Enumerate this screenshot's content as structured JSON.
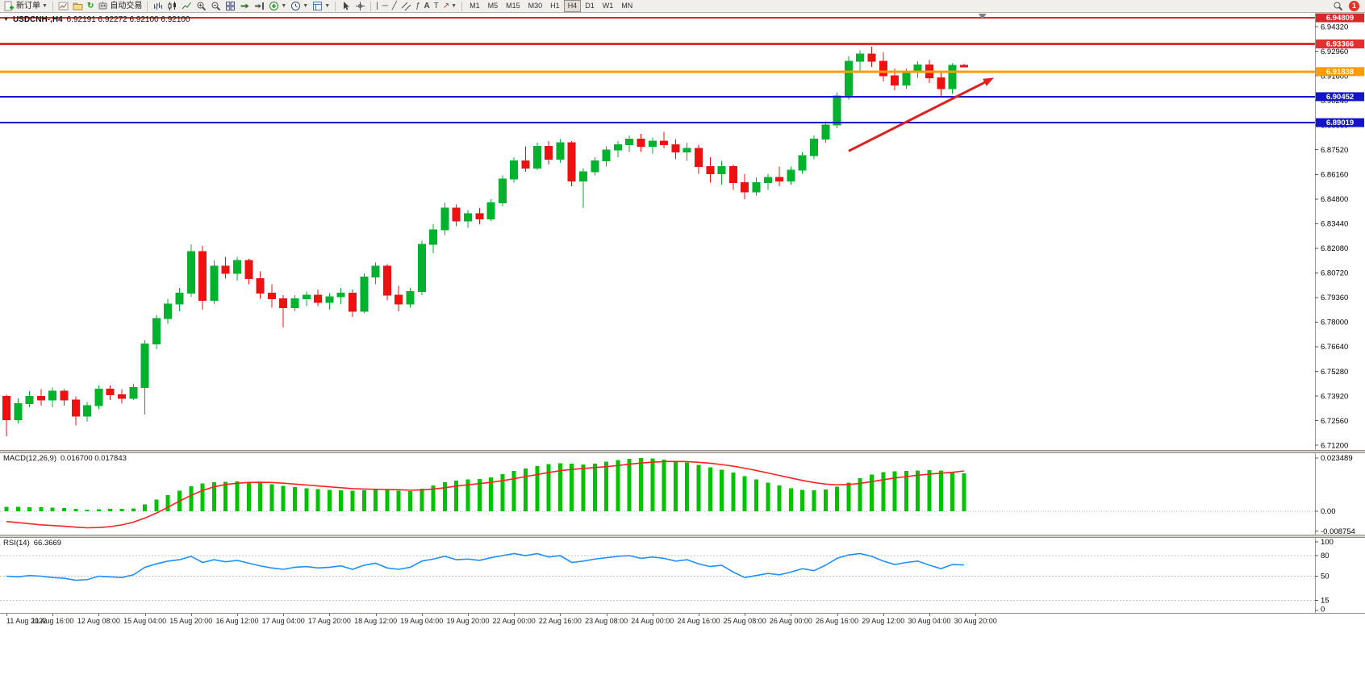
{
  "toolbar": {
    "new_order_label": "新订单",
    "autotrade_label": "自动交易",
    "timeframes": [
      "M1",
      "M5",
      "M15",
      "M30",
      "H1",
      "H4",
      "D1",
      "W1",
      "MN"
    ],
    "active_timeframe": "H4",
    "notification_count": "1"
  },
  "chart": {
    "symbol_period": "USDCNH-,H4",
    "ohlc_line": "6.92191 6.92272 6.92100 6.92100",
    "macd_label": "MACD(12,26,9)",
    "macd_values": "0.016700 0.017843",
    "rsi_label": "RSI(14)",
    "rsi_value": "66.3669"
  },
  "chart_data": {
    "type": "candlestick",
    "symbol": "USDCNH-",
    "timeframe": "H4",
    "ohlc_current": {
      "open": 6.92191,
      "high": 6.92272,
      "low": 6.921,
      "close": 6.921
    },
    "bull_color": "#00b22c",
    "bear_color": "#ee1111",
    "price_axis": {
      "min": 6.7094,
      "max": 6.9508,
      "tick_start": 6.9432,
      "tick_step": 0.0136,
      "tick_labels": [
        "6.94320",
        "6.92960",
        "6.91600",
        "6.90240",
        "6.88880",
        "6.87520",
        "6.86160",
        "6.84800",
        "6.83440",
        "6.82080",
        "6.80720",
        "6.79360",
        "6.78000",
        "6.76640",
        "6.75280",
        "6.73920",
        "6.72560",
        "6.71200"
      ]
    },
    "x_labels": [
      "11 Aug 2022",
      "11 Aug 16:00",
      "12 Aug 08:00",
      "15 Aug 04:00",
      "15 Aug 20:00",
      "16 Aug 12:00",
      "17 Aug 04:00",
      "17 Aug 20:00",
      "18 Aug 12:00",
      "19 Aug 04:00",
      "19 Aug 20:00",
      "22 Aug 00:00",
      "22 Aug 16:00",
      "23 Aug 08:00",
      "24 Aug 00:00",
      "24 Aug 16:00",
      "25 Aug 08:00",
      "26 Aug 00:00",
      "26 Aug 16:00",
      "29 Aug 12:00",
      "30 Aug 04:00",
      "30 Aug 20:00"
    ],
    "candles": [
      [
        6.739,
        6.74,
        6.717,
        6.726
      ],
      [
        6.726,
        6.738,
        6.724,
        6.735
      ],
      [
        6.735,
        6.742,
        6.733,
        6.739
      ],
      [
        6.739,
        6.743,
        6.734,
        6.737
      ],
      [
        6.737,
        6.744,
        6.733,
        6.742
      ],
      [
        6.742,
        6.743,
        6.734,
        6.737
      ],
      [
        6.737,
        6.739,
        6.723,
        6.728
      ],
      [
        6.728,
        6.736,
        6.725,
        6.734
      ],
      [
        6.734,
        6.745,
        6.732,
        6.743
      ],
      [
        6.743,
        6.745,
        6.737,
        6.74
      ],
      [
        6.74,
        6.743,
        6.735,
        6.738
      ],
      [
        6.738,
        6.746,
        6.737,
        6.744
      ],
      [
        6.744,
        6.77,
        6.729,
        6.768
      ],
      [
        6.768,
        6.784,
        6.765,
        6.782
      ],
      [
        6.782,
        6.793,
        6.779,
        6.79
      ],
      [
        6.79,
        6.799,
        6.786,
        6.796
      ],
      [
        6.796,
        6.823,
        6.794,
        6.819
      ],
      [
        6.819,
        6.822,
        6.787,
        6.792
      ],
      [
        6.792,
        6.814,
        6.79,
        6.811
      ],
      [
        6.811,
        6.816,
        6.804,
        6.807
      ],
      [
        6.807,
        6.816,
        6.803,
        6.814
      ],
      [
        6.814,
        6.815,
        6.801,
        6.804
      ],
      [
        6.804,
        6.808,
        6.793,
        6.796
      ],
      [
        6.796,
        6.801,
        6.788,
        6.793
      ],
      [
        6.793,
        6.795,
        6.777,
        6.788
      ],
      [
        6.788,
        6.795,
        6.786,
        6.793
      ],
      [
        6.793,
        6.797,
        6.789,
        6.795
      ],
      [
        6.795,
        6.798,
        6.789,
        6.791
      ],
      [
        6.791,
        6.796,
        6.787,
        6.794
      ],
      [
        6.794,
        6.799,
        6.79,
        6.796
      ],
      [
        6.796,
        6.798,
        6.783,
        6.786
      ],
      [
        6.786,
        6.807,
        6.785,
        6.805
      ],
      [
        6.805,
        6.813,
        6.801,
        6.811
      ],
      [
        6.811,
        6.812,
        6.792,
        6.795
      ],
      [
        6.795,
        6.8,
        6.786,
        6.79
      ],
      [
        6.79,
        6.799,
        6.788,
        6.797
      ],
      [
        6.797,
        6.825,
        6.795,
        6.823
      ],
      [
        6.823,
        6.834,
        6.818,
        6.831
      ],
      [
        6.831,
        6.846,
        6.828,
        6.843
      ],
      [
        6.843,
        6.845,
        6.833,
        6.836
      ],
      [
        6.836,
        6.842,
        6.832,
        6.84
      ],
      [
        6.84,
        6.843,
        6.834,
        6.837
      ],
      [
        6.837,
        6.848,
        6.836,
        6.846
      ],
      [
        6.846,
        6.861,
        6.844,
        6.859
      ],
      [
        6.859,
        6.871,
        6.857,
        6.869
      ],
      [
        6.869,
        6.877,
        6.863,
        6.865
      ],
      [
        6.865,
        6.879,
        6.864,
        6.877
      ],
      [
        6.877,
        6.88,
        6.867,
        6.87
      ],
      [
        6.87,
        6.881,
        6.868,
        6.879
      ],
      [
        6.879,
        6.88,
        6.855,
        6.858
      ],
      [
        6.858,
        6.865,
        6.843,
        6.863
      ],
      [
        6.863,
        6.871,
        6.861,
        6.869
      ],
      [
        6.869,
        6.877,
        6.866,
        6.875
      ],
      [
        6.875,
        6.88,
        6.871,
        6.878
      ],
      [
        6.878,
        6.883,
        6.874,
        6.881
      ],
      [
        6.881,
        6.884,
        6.874,
        6.877
      ],
      [
        6.877,
        6.882,
        6.873,
        6.88
      ],
      [
        6.88,
        6.885,
        6.876,
        6.878
      ],
      [
        6.878,
        6.881,
        6.87,
        6.874
      ],
      [
        6.874,
        6.879,
        6.869,
        6.876
      ],
      [
        6.876,
        6.878,
        6.862,
        6.866
      ],
      [
        6.866,
        6.871,
        6.857,
        6.862
      ],
      [
        6.862,
        6.869,
        6.856,
        6.866
      ],
      [
        6.866,
        6.867,
        6.853,
        6.857
      ],
      [
        6.857,
        6.862,
        6.848,
        6.852
      ],
      [
        6.852,
        6.86,
        6.85,
        6.857
      ],
      [
        6.857,
        6.862,
        6.853,
        6.86
      ],
      [
        6.86,
        6.866,
        6.855,
        6.858
      ],
      [
        6.858,
        6.866,
        6.856,
        6.864
      ],
      [
        6.864,
        6.874,
        6.862,
        6.872
      ],
      [
        6.872,
        6.883,
        6.87,
        6.881
      ],
      [
        6.881,
        6.891,
        6.879,
        6.889
      ],
      [
        6.889,
        6.907,
        6.887,
        6.905
      ],
      [
        6.905,
        6.927,
        6.903,
        6.924
      ],
      [
        6.924,
        6.93,
        6.919,
        6.928
      ],
      [
        6.928,
        6.932,
        6.921,
        6.924
      ],
      [
        6.924,
        6.929,
        6.913,
        6.916
      ],
      [
        6.916,
        6.92,
        6.908,
        6.911
      ],
      [
        6.911,
        6.92,
        6.909,
        6.918
      ],
      [
        6.918,
        6.924,
        6.915,
        6.922
      ],
      [
        6.922,
        6.925,
        6.912,
        6.915
      ],
      [
        6.915,
        6.918,
        6.904,
        6.909
      ],
      [
        6.909,
        6.923,
        6.906,
        6.9219
      ],
      [
        6.92191,
        6.92272,
        6.921,
        6.921
      ]
    ],
    "hlines": [
      {
        "price": 6.94809,
        "color": "#d42a2a",
        "width": 2,
        "badge": "6.94809"
      },
      {
        "price": 6.93366,
        "color": "#e03030",
        "width": 3,
        "badge": "6.93366"
      },
      {
        "price": 6.91838,
        "color": "#ff9c00",
        "width": 3,
        "badge": "6.91838"
      },
      {
        "price": 6.90452,
        "color": "#1414cc",
        "width": 2,
        "badge": "6.90452"
      },
      {
        "price": 6.89019,
        "color": "#1414cc",
        "width": 2,
        "badge": "6.89019"
      }
    ],
    "trend_arrow": {
      "x1_bar": 73.0,
      "y1_price": 6.8745,
      "x2_bar": 85.6,
      "y2_price": 6.915,
      "color": "#e02020"
    },
    "shift_marker_bar": 84.6,
    "macd": {
      "params": "12,26,9",
      "main_value": 0.0167,
      "signal_value": 0.017843,
      "axis_labels": [
        "0.023489",
        "0.00",
        "-0.008754"
      ],
      "axis_values": [
        0.023489,
        0,
        -0.008754
      ],
      "hist_color": "#00c400",
      "signal_color": "#ff2222",
      "histogram": [
        0.002,
        0.0019,
        0.0018,
        0.0017,
        0.0016,
        0.0014,
        0.001,
        0.0008,
        0.0009,
        0.001,
        0.0011,
        0.0013,
        0.003,
        0.0052,
        0.0072,
        0.009,
        0.011,
        0.0123,
        0.0128,
        0.013,
        0.0131,
        0.013,
        0.0126,
        0.012,
        0.0112,
        0.0106,
        0.0101,
        0.0097,
        0.0094,
        0.0092,
        0.009,
        0.0092,
        0.0096,
        0.0094,
        0.009,
        0.0089,
        0.01,
        0.0113,
        0.0128,
        0.0136,
        0.014,
        0.0142,
        0.015,
        0.0163,
        0.0178,
        0.0188,
        0.02,
        0.0208,
        0.0212,
        0.021,
        0.0206,
        0.021,
        0.0218,
        0.0226,
        0.0232,
        0.0235,
        0.0233,
        0.0228,
        0.0222,
        0.0215,
        0.0204,
        0.0194,
        0.0183,
        0.017,
        0.0155,
        0.014,
        0.0126,
        0.0113,
        0.0102,
        0.0095,
        0.0092,
        0.0096,
        0.0108,
        0.0126,
        0.0146,
        0.0162,
        0.0172,
        0.0176,
        0.0178,
        0.018,
        0.0181,
        0.0179,
        0.0174,
        0.0167
      ],
      "signal": [
        -0.0045,
        -0.005,
        -0.0055,
        -0.006,
        -0.0063,
        -0.0066,
        -0.007,
        -0.0073,
        -0.0072,
        -0.0068,
        -0.006,
        -0.0048,
        -0.003,
        -0.0008,
        0.0018,
        0.0045,
        0.007,
        0.0092,
        0.0108,
        0.0118,
        0.0124,
        0.0127,
        0.0128,
        0.0127,
        0.0124,
        0.012,
        0.0116,
        0.0112,
        0.0108,
        0.0104,
        0.01,
        0.0098,
        0.0097,
        0.0096,
        0.0095,
        0.0093,
        0.0094,
        0.0098,
        0.0104,
        0.0111,
        0.0117,
        0.0122,
        0.0128,
        0.0135,
        0.0144,
        0.0153,
        0.0162,
        0.0171,
        0.0179,
        0.0185,
        0.0189,
        0.0193,
        0.0197,
        0.0202,
        0.0208,
        0.0213,
        0.0217,
        0.0219,
        0.022,
        0.0219,
        0.0216,
        0.0212,
        0.0206,
        0.0199,
        0.019,
        0.018,
        0.0169,
        0.0158,
        0.0147,
        0.0136,
        0.0127,
        0.012,
        0.0117,
        0.0118,
        0.0123,
        0.0131,
        0.0139,
        0.0147,
        0.0153,
        0.0159,
        0.0164,
        0.0168,
        0.0172,
        0.0178
      ]
    },
    "rsi": {
      "period": 14,
      "value": 66.3669,
      "line_color": "#1e90ff",
      "axis_labels": [
        "100",
        "80",
        "50",
        "15",
        "0"
      ],
      "axis_values": [
        100,
        80,
        50,
        15,
        0
      ],
      "levels": [
        80,
        50,
        15
      ],
      "values": [
        50,
        49,
        51,
        50,
        48,
        47,
        44,
        45,
        50,
        49,
        48,
        52,
        63,
        68,
        72,
        74,
        79,
        70,
        74,
        71,
        73,
        69,
        65,
        62,
        60,
        63,
        64,
        62,
        63,
        65,
        60,
        66,
        69,
        62,
        60,
        63,
        72,
        75,
        79,
        74,
        75,
        73,
        77,
        80,
        83,
        80,
        83,
        78,
        80,
        70,
        72,
        75,
        77,
        79,
        80,
        76,
        78,
        76,
        72,
        74,
        68,
        64,
        66,
        56,
        48,
        51,
        54,
        52,
        56,
        61,
        58,
        66,
        76,
        81,
        83,
        79,
        72,
        67,
        70,
        72,
        66,
        61,
        67,
        66.4
      ]
    }
  }
}
